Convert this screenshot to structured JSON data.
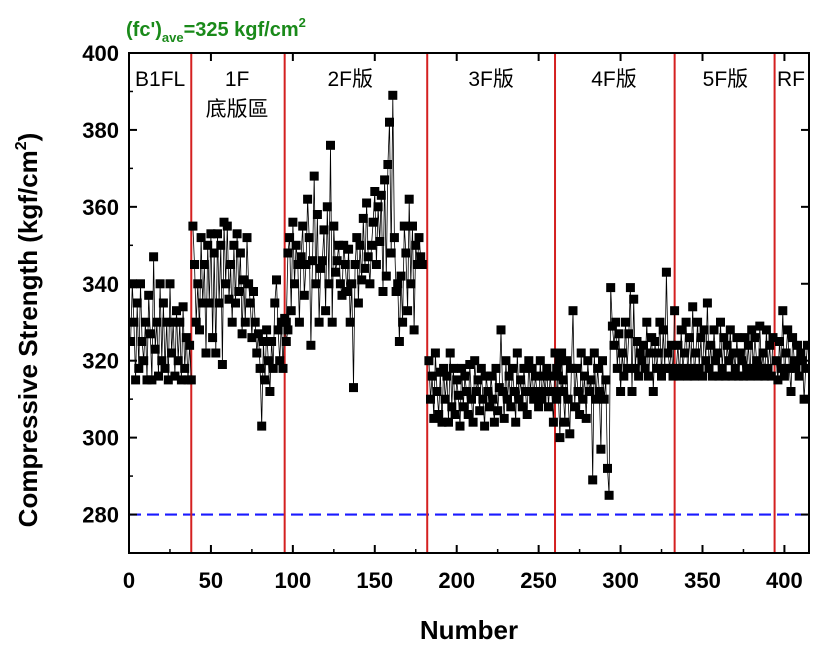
{
  "chart_data": {
    "type": "scatter",
    "title": {
      "prefix": "(fc')",
      "subscript": "ave",
      "main": "=325 kgf/cm",
      "superscript": "2"
    },
    "title_color": "#1a8a1a",
    "xlabel": "Number",
    "ylabel": {
      "main": "Compressive Strength (kgf/cm",
      "superscript": "2",
      "suffix": ")"
    },
    "xlim": [
      0,
      415
    ],
    "ylim": [
      270,
      400
    ],
    "x_ticks": [
      0,
      50,
      100,
      150,
      200,
      250,
      300,
      350,
      400
    ],
    "y_ticks": [
      280,
      300,
      320,
      340,
      360,
      380,
      400
    ],
    "reference_line": {
      "y": 280,
      "color": "#1a1aff",
      "style": "dashed"
    },
    "dividers": {
      "x": [
        38,
        95,
        182,
        260,
        333,
        394
      ],
      "color": "#d42020"
    },
    "regions": [
      {
        "lines": [
          "B1FL"
        ],
        "x": 19
      },
      {
        "lines": [
          "1F",
          "底版區"
        ],
        "x": 66
      },
      {
        "lines": [
          "2F版"
        ],
        "x": 135
      },
      {
        "lines": [
          "3F版"
        ],
        "x": 221
      },
      {
        "lines": [
          "4F版"
        ],
        "x": 296
      },
      {
        "lines": [
          "5F版"
        ],
        "x": 364
      },
      {
        "lines": [
          "RF"
        ],
        "x": 404
      }
    ],
    "series": [
      {
        "marker": "square",
        "color": "#000000",
        "line": true,
        "segments": [
          {
            "x_start": 1,
            "values": [
              325,
              340,
              330,
              315,
              335,
              318,
              340,
              325,
              320,
              330,
              315,
              337,
              327,
              315,
              347,
              323,
              330,
              316,
              340,
              320,
              335,
              318,
              330,
              315,
              340,
              322,
              330,
              316,
              333,
              320,
              330,
              315,
              334,
              318,
              326,
              315,
              324,
              315
            ]
          },
          {
            "x_start": 39,
            "values": [
              355,
              345,
              330,
              340,
              328,
              352,
              335,
              345,
              322,
              350,
              335,
              353,
              326,
              348,
              322,
              353,
              335,
              350,
              319,
              356,
              340,
              355,
              336,
              345,
              330,
              350,
              335,
              353,
              338,
              348,
              327,
              341,
              330,
              352,
              340,
              335,
              326,
              338,
              330,
              322,
              327,
              318,
              303,
              325,
              315,
              328,
              320,
              312,
              325,
              318,
              335,
              341,
              328,
              320,
              330,
              318,
              331,
              325,
              328
            ]
          },
          {
            "x_start": 96,
            "values": [
              330,
              348,
              352,
              333,
              356,
              340,
              350,
              345,
              330,
              347,
              355,
              337,
              345,
              362,
              352,
              324,
              346,
              368,
              340,
              358,
              330,
              344,
              346,
              354,
              333,
              360,
              340,
              376,
              330,
              355,
              343,
              346,
              350,
              340,
              337,
              350,
              345,
              338,
              349,
              330,
              340,
              313,
              345,
              352,
              335,
              350,
              341,
              357,
              344,
              361,
              347,
              340,
              350,
              356,
              364,
              345,
              360,
              351,
              363,
              338,
              367,
              342,
              371,
              382,
              348,
              389,
              352,
              338,
              340,
              325,
              342,
              330,
              355,
              348,
              333,
              362,
              340,
              355,
              328,
              350,
              345,
              352,
              347,
              345
            ]
          },
          {
            "x_start": 183,
            "values": [
              320,
              310,
              316,
              305,
              322,
              312,
              306,
              317,
              304,
              318,
              310,
              316,
              304,
              322,
              308,
              318,
              306,
              315,
              311,
              303,
              318,
              308,
              316,
              312,
              306,
              319,
              310,
              304,
              320,
              312,
              315,
              307,
              318,
              310,
              303,
              316,
              312,
              308,
              316,
              310,
              304,
              318,
              307,
              313,
              328,
              312,
              305,
              320,
              310,
              316,
              308,
              318,
              312,
              304,
              322,
              310,
              315,
              308,
              318,
              312,
              306,
              320,
              312,
              318,
              310,
              316,
              312,
              308,
              320,
              310,
              316,
              312,
              318,
              308,
              316,
              312,
              304,
              322,
              310,
              316,
              320,
              312,
              315
            ]
          },
          {
            "x_start": 261,
            "values": [
              318,
              312,
              300,
              322,
              312,
              304,
              320,
              310,
              301,
              318,
              333,
              308,
              318,
              312,
              306,
              322,
              310,
              316,
              305,
              320,
              312,
              315,
              289,
              322,
              310,
              318,
              312,
              297,
              320,
              310,
              315,
              292,
              285,
              339,
              329,
              324,
              330,
              318,
              327,
              312,
              322,
              316,
              330,
              318,
              327,
              339,
              312,
              336,
              318,
              325,
              316,
              322,
              320,
              324,
              318,
              330,
              316,
              322,
              326,
              312,
              325,
              318,
              322,
              330,
              316,
              328,
              318,
              343,
              322,
              318,
              324,
              316,
              333
            ]
          },
          {
            "x_start": 334,
            "values": [
              318,
              324,
              316,
              328,
              318,
              322,
              330,
              316,
              326,
              318,
              334,
              316,
              322,
              330,
              318,
              326,
              316,
              328,
              320,
              335,
              318,
              324,
              316,
              328,
              320,
              322,
              316,
              330,
              318,
              326,
              316,
              324,
              320,
              328,
              316,
              322,
              318,
              326,
              316,
              322,
              320,
              316,
              326,
              318,
              324,
              316,
              328,
              318,
              326,
              320,
              316,
              329,
              318,
              322,
              316,
              328,
              318,
              324,
              316,
              326
            ]
          },
          {
            "x_start": 395,
            "values": [
              320,
              315,
              325,
              318,
              333,
              316,
              322,
              328,
              318,
              312,
              326,
              320,
              318,
              324,
              316,
              322,
              320,
              310,
              318,
              324
            ]
          }
        ]
      }
    ]
  }
}
